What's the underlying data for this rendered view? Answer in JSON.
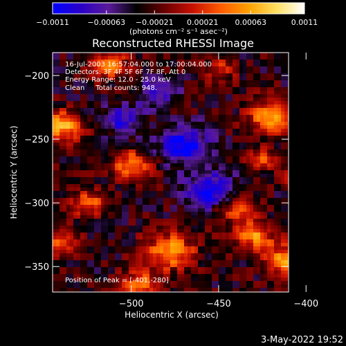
{
  "chart_data": {
    "type": "heatmap",
    "title": "Reconstructed RHESSI Image",
    "xlabel": "Heliocentric X (arcsec)",
    "ylabel": "Heliocentric Y (arcsec)",
    "xlim": [
      -545,
      -410
    ],
    "ylim": [
      -370,
      -182
    ],
    "x_ticks": [
      -500,
      -450,
      -400
    ],
    "x_tick_labels": [
      "−500",
      "−450",
      "−400"
    ],
    "y_ticks": [
      -200,
      -250,
      -300,
      -350
    ],
    "y_tick_labels": [
      "−200",
      "−250",
      "−300",
      "−350"
    ],
    "colorbar": {
      "range": [
        -0.0011,
        0.0011
      ],
      "ticks": [
        -0.0011,
        -0.00063,
        -0.00021,
        0.00021,
        0.00063,
        0.0011
      ],
      "tick_labels": [
        "−0.0011",
        "−0.00063",
        "−0.00021",
        "0.00021",
        "0.00063",
        "0.0011"
      ],
      "unit_label": "(photons cm⁻² s⁻¹ asec⁻²)",
      "colormap": [
        "#0000ff",
        "#2a00c8",
        "#5a1a9a",
        "#000000",
        "#6a0000",
        "#c81000",
        "#ff5a00",
        "#ffa000",
        "#ffe060",
        "#ffffff"
      ]
    },
    "sources": [
      {
        "x": -401,
        "y": -280,
        "amplitude": 0.0011,
        "sigma": 6
      },
      {
        "x": -540,
        "y": -240,
        "amplitude": 0.00095,
        "sigma": 8
      },
      {
        "x": -512,
        "y": -192,
        "amplitude": 0.00085,
        "sigma": 7
      },
      {
        "x": -420,
        "y": -232,
        "amplitude": 0.0009,
        "sigma": 9
      },
      {
        "x": -500,
        "y": -270,
        "amplitude": 0.00075,
        "sigma": 8
      },
      {
        "x": -525,
        "y": -300,
        "amplitude": 0.0007,
        "sigma": 7
      },
      {
        "x": -478,
        "y": -338,
        "amplitude": 0.00085,
        "sigma": 10
      },
      {
        "x": -430,
        "y": -325,
        "amplitude": 0.0008,
        "sigma": 8
      },
      {
        "x": -410,
        "y": -345,
        "amplitude": 0.0009,
        "sigma": 9
      },
      {
        "x": -440,
        "y": -305,
        "amplitude": 0.0006,
        "sigma": 7
      },
      {
        "x": -495,
        "y": -365,
        "amplitude": 0.00075,
        "sigma": 8
      },
      {
        "x": -450,
        "y": -195,
        "amplitude": 0.00045,
        "sigma": 7
      },
      {
        "x": -540,
        "y": -330,
        "amplitude": 0.00055,
        "sigma": 7
      },
      {
        "x": -425,
        "y": -265,
        "amplitude": 0.0006,
        "sigma": 6
      },
      {
        "x": -470,
        "y": -255,
        "amplitude": -0.0008,
        "sigma": 10
      },
      {
        "x": -455,
        "y": -290,
        "amplitude": -0.0009,
        "sigma": 9
      },
      {
        "x": -505,
        "y": -235,
        "amplitude": -0.00055,
        "sigma": 8
      },
      {
        "x": -485,
        "y": -215,
        "amplitude": -0.0005,
        "sigma": 8
      }
    ],
    "info_lines": [
      "16-Jul-2003 16:57:04.000 to 17:00:04.000",
      "Detectors: 3F 4F 5F 6F 7F 8F, Att 0",
      "Energy Range: 12.0 - 25.0 keV",
      "Clean     Total counts: 948."
    ],
    "peak_label": "Position of Peak = [-401,-280]",
    "footer_date": "3-May-2022 19:52"
  }
}
